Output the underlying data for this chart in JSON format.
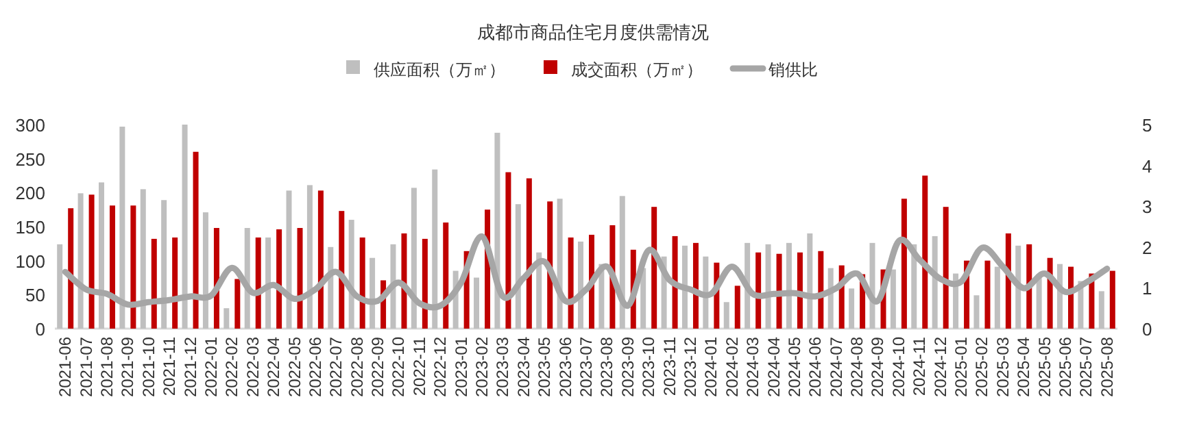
{
  "chart_data": {
    "type": "bar",
    "title": "成都市商品住宅月度供需情况",
    "categories": [
      "2021-06",
      "2021-07",
      "2021-08",
      "2021-09",
      "2021-10",
      "2021-11",
      "2021-12",
      "2022-01",
      "2022-02",
      "2022-03",
      "2022-04",
      "2022-05",
      "2022-06",
      "2022-07",
      "2022-08",
      "2022-09",
      "2022-10",
      "2022-11",
      "2022-12",
      "2023-01",
      "2023-02",
      "2023-03",
      "2023-04",
      "2023-05",
      "2023-06",
      "2023-07",
      "2023-08",
      "2023-09",
      "2023-10",
      "2023-11",
      "2023-12",
      "2024-01",
      "2024-02",
      "2024-03",
      "2024-04",
      "2024-05",
      "2024-06",
      "2024-07",
      "2024-08",
      "2024-09",
      "2024-10",
      "2024-11",
      "2024-12",
      "2025-01",
      "2025-02",
      "2025-03",
      "2025-04",
      "2025-05",
      "2025-06",
      "2025-07",
      "2025-08"
    ],
    "series": [
      {
        "name": "供应面积（万㎡）",
        "color": "#bfbfbf",
        "values": [
          124,
          199,
          215,
          297,
          205,
          189,
          300,
          171,
          30,
          148,
          134,
          203,
          211,
          120,
          160,
          104,
          124,
          207,
          234,
          85,
          75,
          288,
          183,
          112,
          191,
          128,
          95,
          195,
          89,
          106,
          122,
          106,
          39,
          126,
          124,
          126,
          140,
          89,
          59,
          126,
          87,
          124,
          136,
          81,
          49,
          91,
          122,
          79,
          95,
          70,
          55
        ]
      },
      {
        "name": "成交面积（万㎡）",
        "color": "#c00000",
        "values": [
          177,
          197,
          181,
          181,
          132,
          134,
          260,
          148,
          73,
          134,
          146,
          148,
          203,
          173,
          134,
          71,
          140,
          132,
          156,
          114,
          175,
          230,
          221,
          187,
          134,
          138,
          152,
          116,
          179,
          136,
          126,
          97,
          63,
          112,
          110,
          112,
          114,
          93,
          80,
          87,
          191,
          225,
          179,
          100,
          100,
          140,
          124,
          104,
          91,
          81,
          85
        ]
      },
      {
        "name": "销供比",
        "type": "line",
        "axis": "y2",
        "color": "#a6a6a6",
        "values": [
          1.39,
          0.96,
          0.85,
          0.59,
          0.65,
          0.7,
          0.79,
          0.81,
          1.49,
          0.88,
          1.07,
          0.73,
          0.96,
          1.39,
          0.79,
          0.68,
          1.13,
          0.62,
          0.56,
          1.13,
          2.26,
          0.79,
          1.24,
          1.64,
          0.68,
          0.96,
          1.52,
          0.56,
          1.92,
          1.19,
          0.96,
          0.85,
          1.52,
          0.85,
          0.85,
          0.87,
          0.79,
          0.99,
          1.35,
          0.68,
          2.14,
          1.69,
          1.22,
          1.15,
          1.98,
          1.52,
          0.99,
          1.35,
          0.9,
          1.13,
          1.47
        ]
      }
    ],
    "ylim": [
      0,
      300
    ],
    "yticks": [
      0,
      50,
      100,
      150,
      200,
      250,
      300
    ],
    "y2lim": [
      0,
      5
    ],
    "y2ticks": [
      0,
      1,
      2,
      3,
      4,
      5
    ],
    "legend": "top",
    "grid": false
  }
}
